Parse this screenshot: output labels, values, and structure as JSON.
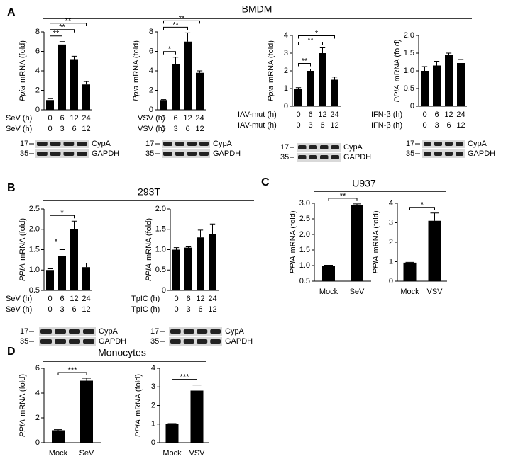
{
  "panels": [
    {
      "letter": "A",
      "title": "BMDM"
    },
    {
      "letter": "B",
      "title": "293T"
    },
    {
      "letter": "C",
      "title": "U937"
    },
    {
      "letter": "D",
      "title": "Monocytes"
    }
  ],
  "chart_data": [
    {
      "type": "bar",
      "ylabel_gene": "Ppia",
      "ylabel": "mRNA (fold)",
      "color": "#000000",
      "row_labels": [
        "SeV (h)",
        "SeV (h)"
      ],
      "categories": [
        "0",
        "6",
        "12",
        "24"
      ],
      "categories2": [
        "0",
        "3",
        "6",
        "12"
      ],
      "values": [
        1.0,
        6.7,
        5.2,
        2.6
      ],
      "errors": [
        0.15,
        0.3,
        0.3,
        0.3
      ],
      "ylim": [
        0,
        8
      ],
      "yticks": [
        0,
        2,
        4,
        6,
        8
      ],
      "brackets": [
        {
          "from": 0,
          "to": 1,
          "label": "**"
        },
        {
          "from": 0,
          "to": 2,
          "label": "**"
        },
        {
          "from": 0,
          "to": 3,
          "label": "**"
        }
      ],
      "blot": {
        "markers": [
          "17",
          "35"
        ],
        "bands": [
          "CypA",
          "GAPDH"
        ]
      }
    },
    {
      "type": "bar",
      "ylabel_gene": "Ppia",
      "ylabel": "mRNA (fold)",
      "color": "#000000",
      "row_labels": [
        "VSV (h)",
        "VSV (h)"
      ],
      "categories": [
        "0",
        "6",
        "12",
        "24"
      ],
      "categories2": [
        "0",
        "3",
        "6",
        "12"
      ],
      "values": [
        1.0,
        4.7,
        7.0,
        3.8
      ],
      "errors": [
        0.05,
        0.7,
        0.9,
        0.2
      ],
      "ylim": [
        0,
        8
      ],
      "yticks": [
        0,
        2,
        4,
        6,
        8
      ],
      "brackets": [
        {
          "from": 0,
          "to": 1,
          "label": "*"
        },
        {
          "from": 0,
          "to": 2,
          "label": "**"
        },
        {
          "from": 0,
          "to": 3,
          "label": "**"
        }
      ],
      "blot": {
        "markers": [
          "17",
          "35"
        ],
        "bands": [
          "CypA",
          "GAPDH"
        ]
      }
    },
    {
      "type": "bar",
      "ylabel_gene": "Ppia",
      "ylabel": "mRNA (fold)",
      "color": "#000000",
      "row_labels": [
        "IAV-mut (h)",
        "IAV-mut (h)"
      ],
      "categories": [
        "0",
        "6",
        "12",
        "24"
      ],
      "categories2": [
        "0",
        "3",
        "6",
        "12"
      ],
      "values": [
        1.0,
        2.0,
        3.0,
        1.5
      ],
      "errors": [
        0.05,
        0.1,
        0.3,
        0.15
      ],
      "ylim": [
        0,
        4
      ],
      "yticks": [
        0,
        1,
        2,
        3,
        4
      ],
      "brackets": [
        {
          "from": 0,
          "to": 1,
          "label": "**"
        },
        {
          "from": 0,
          "to": 2,
          "label": "**"
        },
        {
          "from": 0,
          "to": 3,
          "label": "*"
        }
      ],
      "blot": {
        "markers": [
          "17",
          "35"
        ],
        "bands": [
          "CypA",
          "GAPDH"
        ]
      }
    },
    {
      "type": "bar",
      "ylabel_gene": "PPIA",
      "ylabel": "mRNA (fold)",
      "color": "#000000",
      "row_labels": [
        "IFN-β (h)",
        "IFN-β (h)"
      ],
      "categories": [
        "0",
        "6",
        "12",
        "24"
      ],
      "categories2": [
        "0",
        "3",
        "6",
        "12"
      ],
      "values": [
        1.0,
        1.15,
        1.45,
        1.22
      ],
      "errors": [
        0.12,
        0.12,
        0.05,
        0.1
      ],
      "ylim": [
        0,
        2
      ],
      "yticks": [
        0,
        0.5,
        {
          "value": 1,
          "label": "1.0"
        },
        1.5,
        {
          "value": 2,
          "label": "2.0"
        }
      ],
      "brackets": [],
      "blot": {
        "markers": [
          "17",
          "35"
        ],
        "bands": [
          "CypA",
          "GAPDH"
        ]
      }
    },
    {
      "type": "bar",
      "ylabel_gene": "PPIA",
      "ylabel": "mRNA (fold)",
      "color": "#000000",
      "row_labels": [
        "SeV (h)",
        "SeV (h)"
      ],
      "categories": [
        "0",
        "6",
        "12",
        "24"
      ],
      "categories2": [
        "0",
        "3",
        "6",
        "12"
      ],
      "values": [
        1.0,
        1.35,
        2.0,
        1.07
      ],
      "errors": [
        0.03,
        0.15,
        0.2,
        0.1
      ],
      "ylim": [
        0.5,
        2.5
      ],
      "yticks": [
        0.5,
        {
          "value": 1,
          "label": "1.0"
        },
        1.5,
        {
          "value": 2,
          "label": "2.0"
        },
        2.5
      ],
      "brackets": [
        {
          "from": 0,
          "to": 1,
          "label": "*"
        },
        {
          "from": 0,
          "to": 2,
          "label": "*"
        }
      ],
      "blot": {
        "markers": [
          "17",
          "35"
        ],
        "bands": [
          "CypA",
          "GAPDH"
        ]
      }
    },
    {
      "type": "bar",
      "ylabel_gene": "PPIA",
      "ylabel": "mRNA (fold)",
      "color": "#000000",
      "row_labels": [
        "TpIC (h)",
        "TpIC (h)"
      ],
      "categories": [
        "0",
        "6",
        "12",
        "24"
      ],
      "categories2": [
        "0",
        "3",
        "6",
        "12"
      ],
      "values": [
        1.0,
        1.05,
        1.3,
        1.38
      ],
      "errors": [
        0.05,
        0.02,
        0.18,
        0.25
      ],
      "ylim": [
        0,
        2
      ],
      "yticks": [
        0,
        0.5,
        {
          "value": 1,
          "label": "1.0"
        },
        1.5,
        {
          "value": 2,
          "label": "2.0"
        }
      ],
      "brackets": [],
      "blot": {
        "markers": [
          "17",
          "35"
        ],
        "bands": [
          "CypA",
          "GAPDH"
        ]
      }
    },
    {
      "type": "bar",
      "ylabel_gene": "PPIA",
      "ylabel": "mRNA (fold)",
      "color": "#000000",
      "categories": [
        "Mock",
        "SeV"
      ],
      "values": [
        1.0,
        2.95
      ],
      "errors": [
        0.01,
        0.03
      ],
      "ylim": [
        0.5,
        3
      ],
      "yticks": [
        0.5,
        {
          "value": 1,
          "label": "1.0"
        },
        1.5,
        {
          "value": 2,
          "label": "2.0"
        },
        2.5,
        {
          "value": 3,
          "label": "3.0"
        }
      ],
      "brackets": [
        {
          "from": 0,
          "to": 1,
          "label": "**"
        }
      ]
    },
    {
      "type": "bar",
      "ylabel_gene": "PPIA",
      "ylabel": "mRNA (fold)",
      "color": "#000000",
      "categories": [
        "Mock",
        "VSV"
      ],
      "values": [
        0.95,
        3.1
      ],
      "errors": [
        0.02,
        0.4
      ],
      "ylim": [
        0,
        4
      ],
      "yticks": [
        0,
        1,
        2,
        3,
        4
      ],
      "brackets": [
        {
          "from": 0,
          "to": 1,
          "label": "*"
        }
      ]
    },
    {
      "type": "bar",
      "ylabel_gene": "PPIA",
      "ylabel": "mRNA (fold)",
      "color": "#000000",
      "categories": [
        "Mock",
        "SeV"
      ],
      "values": [
        1.0,
        5.0
      ],
      "errors": [
        0.05,
        0.2
      ],
      "ylim": [
        0,
        6
      ],
      "yticks": [
        0,
        2,
        4,
        6
      ],
      "brackets": [
        {
          "from": 0,
          "to": 1,
          "label": "***"
        }
      ]
    },
    {
      "type": "bar",
      "ylabel_gene": "PPIA",
      "ylabel": "mRNA (fold)",
      "color": "#000000",
      "categories": [
        "Mock",
        "VSV"
      ],
      "values": [
        1.0,
        2.8
      ],
      "errors": [
        0.03,
        0.3
      ],
      "ylim": [
        0,
        4
      ],
      "yticks": [
        0,
        1,
        2,
        3,
        4
      ],
      "brackets": [
        {
          "from": 0,
          "to": 1,
          "label": "***"
        }
      ]
    }
  ]
}
